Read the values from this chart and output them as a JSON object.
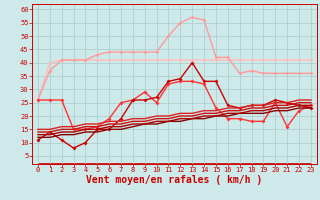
{
  "background_color": "#cde9e9",
  "grid_color": "#aacccc",
  "xlabel": "Vent moyen/en rafales ( km/h )",
  "xlabel_color": "#cc0000",
  "xlabel_fontsize": 7,
  "yticks": [
    5,
    10,
    15,
    20,
    25,
    30,
    35,
    40,
    45,
    50,
    55,
    60
  ],
  "xticks": [
    0,
    1,
    2,
    3,
    4,
    5,
    6,
    7,
    8,
    9,
    10,
    11,
    12,
    13,
    14,
    15,
    16,
    17,
    18,
    19,
    20,
    21,
    22,
    23
  ],
  "ylim": [
    2,
    62
  ],
  "xlim": [
    -0.5,
    23.5
  ],
  "series": [
    {
      "x": [
        0,
        1,
        2,
        3,
        4,
        5,
        6,
        7,
        8,
        9,
        10,
        11,
        12,
        13,
        14,
        15,
        16,
        17,
        18,
        19,
        20,
        21,
        22,
        23
      ],
      "y": [
        26,
        40,
        41,
        41,
        41,
        41,
        41,
        41,
        41,
        41,
        41,
        41,
        41,
        41,
        41,
        41,
        41,
        41,
        41,
        41,
        41,
        41,
        41,
        41
      ],
      "color": "#ffbbbb",
      "lw": 1.0,
      "marker": "D",
      "ms": 1.8,
      "zorder": 2
    },
    {
      "x": [
        0,
        1,
        2,
        3,
        4,
        5,
        6,
        7,
        8,
        9,
        10,
        11,
        12,
        13,
        14,
        15,
        16,
        17,
        18,
        19,
        20,
        21,
        22,
        23
      ],
      "y": [
        26,
        37,
        41,
        41,
        41,
        43,
        44,
        44,
        44,
        44,
        44,
        50,
        55,
        57,
        56,
        42,
        42,
        36,
        37,
        36,
        36,
        36,
        36,
        36
      ],
      "color": "#ff9999",
      "lw": 1.0,
      "marker": "D",
      "ms": 1.8,
      "zorder": 2
    },
    {
      "x": [
        0,
        1,
        2,
        3,
        4,
        5,
        6,
        7,
        8,
        9,
        10,
        11,
        12,
        13,
        14,
        15,
        16,
        17,
        18,
        19,
        20,
        21,
        22,
        23
      ],
      "y": [
        11,
        14,
        11,
        8,
        10,
        15,
        15,
        19,
        26,
        26,
        27,
        33,
        34,
        40,
        33,
        33,
        24,
        23,
        24,
        24,
        26,
        25,
        24,
        23
      ],
      "color": "#cc0000",
      "lw": 1.0,
      "marker": "D",
      "ms": 2.0,
      "zorder": 5
    },
    {
      "x": [
        0,
        1,
        2,
        3,
        4,
        5,
        6,
        7,
        8,
        9,
        10,
        11,
        12,
        13,
        14,
        15,
        16,
        17,
        18,
        19,
        20,
        21,
        22,
        23
      ],
      "y": [
        26,
        26,
        26,
        15,
        15,
        16,
        19,
        25,
        26,
        29,
        25,
        32,
        33,
        33,
        32,
        23,
        19,
        19,
        18,
        18,
        25,
        16,
        22,
        24
      ],
      "color": "#ff3333",
      "lw": 1.0,
      "marker": "D",
      "ms": 2.0,
      "zorder": 4
    },
    {
      "x": [
        0,
        1,
        2,
        3,
        4,
        5,
        6,
        7,
        8,
        9,
        10,
        11,
        12,
        13,
        14,
        15,
        16,
        17,
        18,
        19,
        20,
        21,
        22,
        23
      ],
      "y": [
        12,
        12,
        13,
        13,
        14,
        14,
        15,
        15,
        16,
        17,
        17,
        18,
        18,
        19,
        19,
        20,
        20,
        21,
        21,
        21,
        22,
        22,
        23,
        23
      ],
      "color": "#880000",
      "lw": 1.0,
      "marker": null,
      "ms": 0,
      "zorder": 6
    },
    {
      "x": [
        0,
        1,
        2,
        3,
        4,
        5,
        6,
        7,
        8,
        9,
        10,
        11,
        12,
        13,
        14,
        15,
        16,
        17,
        18,
        19,
        20,
        21,
        22,
        23
      ],
      "y": [
        13,
        13,
        14,
        14,
        15,
        15,
        16,
        16,
        17,
        17,
        18,
        18,
        19,
        19,
        20,
        20,
        21,
        21,
        22,
        22,
        23,
        23,
        24,
        24
      ],
      "color": "#aa0000",
      "lw": 1.0,
      "marker": null,
      "ms": 0,
      "zorder": 6
    },
    {
      "x": [
        0,
        1,
        2,
        3,
        4,
        5,
        6,
        7,
        8,
        9,
        10,
        11,
        12,
        13,
        14,
        15,
        16,
        17,
        18,
        19,
        20,
        21,
        22,
        23
      ],
      "y": [
        14,
        14,
        15,
        15,
        16,
        16,
        17,
        17,
        18,
        18,
        19,
        19,
        20,
        20,
        21,
        21,
        22,
        22,
        23,
        23,
        24,
        24,
        25,
        25
      ],
      "color": "#cc1111",
      "lw": 1.0,
      "marker": null,
      "ms": 0,
      "zorder": 6
    },
    {
      "x": [
        0,
        1,
        2,
        3,
        4,
        5,
        6,
        7,
        8,
        9,
        10,
        11,
        12,
        13,
        14,
        15,
        16,
        17,
        18,
        19,
        20,
        21,
        22,
        23
      ],
      "y": [
        15,
        15,
        16,
        16,
        17,
        17,
        18,
        18,
        19,
        19,
        20,
        20,
        21,
        21,
        22,
        22,
        23,
        23,
        24,
        24,
        25,
        25,
        26,
        26
      ],
      "color": "#dd2222",
      "lw": 1.0,
      "marker": null,
      "ms": 0,
      "zorder": 6
    },
    {
      "x": [
        0,
        1,
        2,
        3,
        4,
        5,
        6,
        7,
        8,
        9,
        10,
        11,
        12,
        13,
        14,
        15,
        16,
        17,
        18,
        19,
        20,
        21,
        22,
        23
      ],
      "y": [
        2.5,
        2.5,
        2.5,
        2.5,
        2.5,
        2.5,
        2.5,
        2.5,
        2.5,
        2.5,
        2.5,
        2.5,
        2.5,
        2.5,
        2.5,
        2.5,
        2.5,
        2.5,
        2.5,
        2.5,
        2.5,
        2.5,
        2.5,
        2.5
      ],
      "color": "#cc0000",
      "lw": 0.6,
      "marker": "4",
      "ms": 3.0,
      "zorder": 1
    }
  ]
}
